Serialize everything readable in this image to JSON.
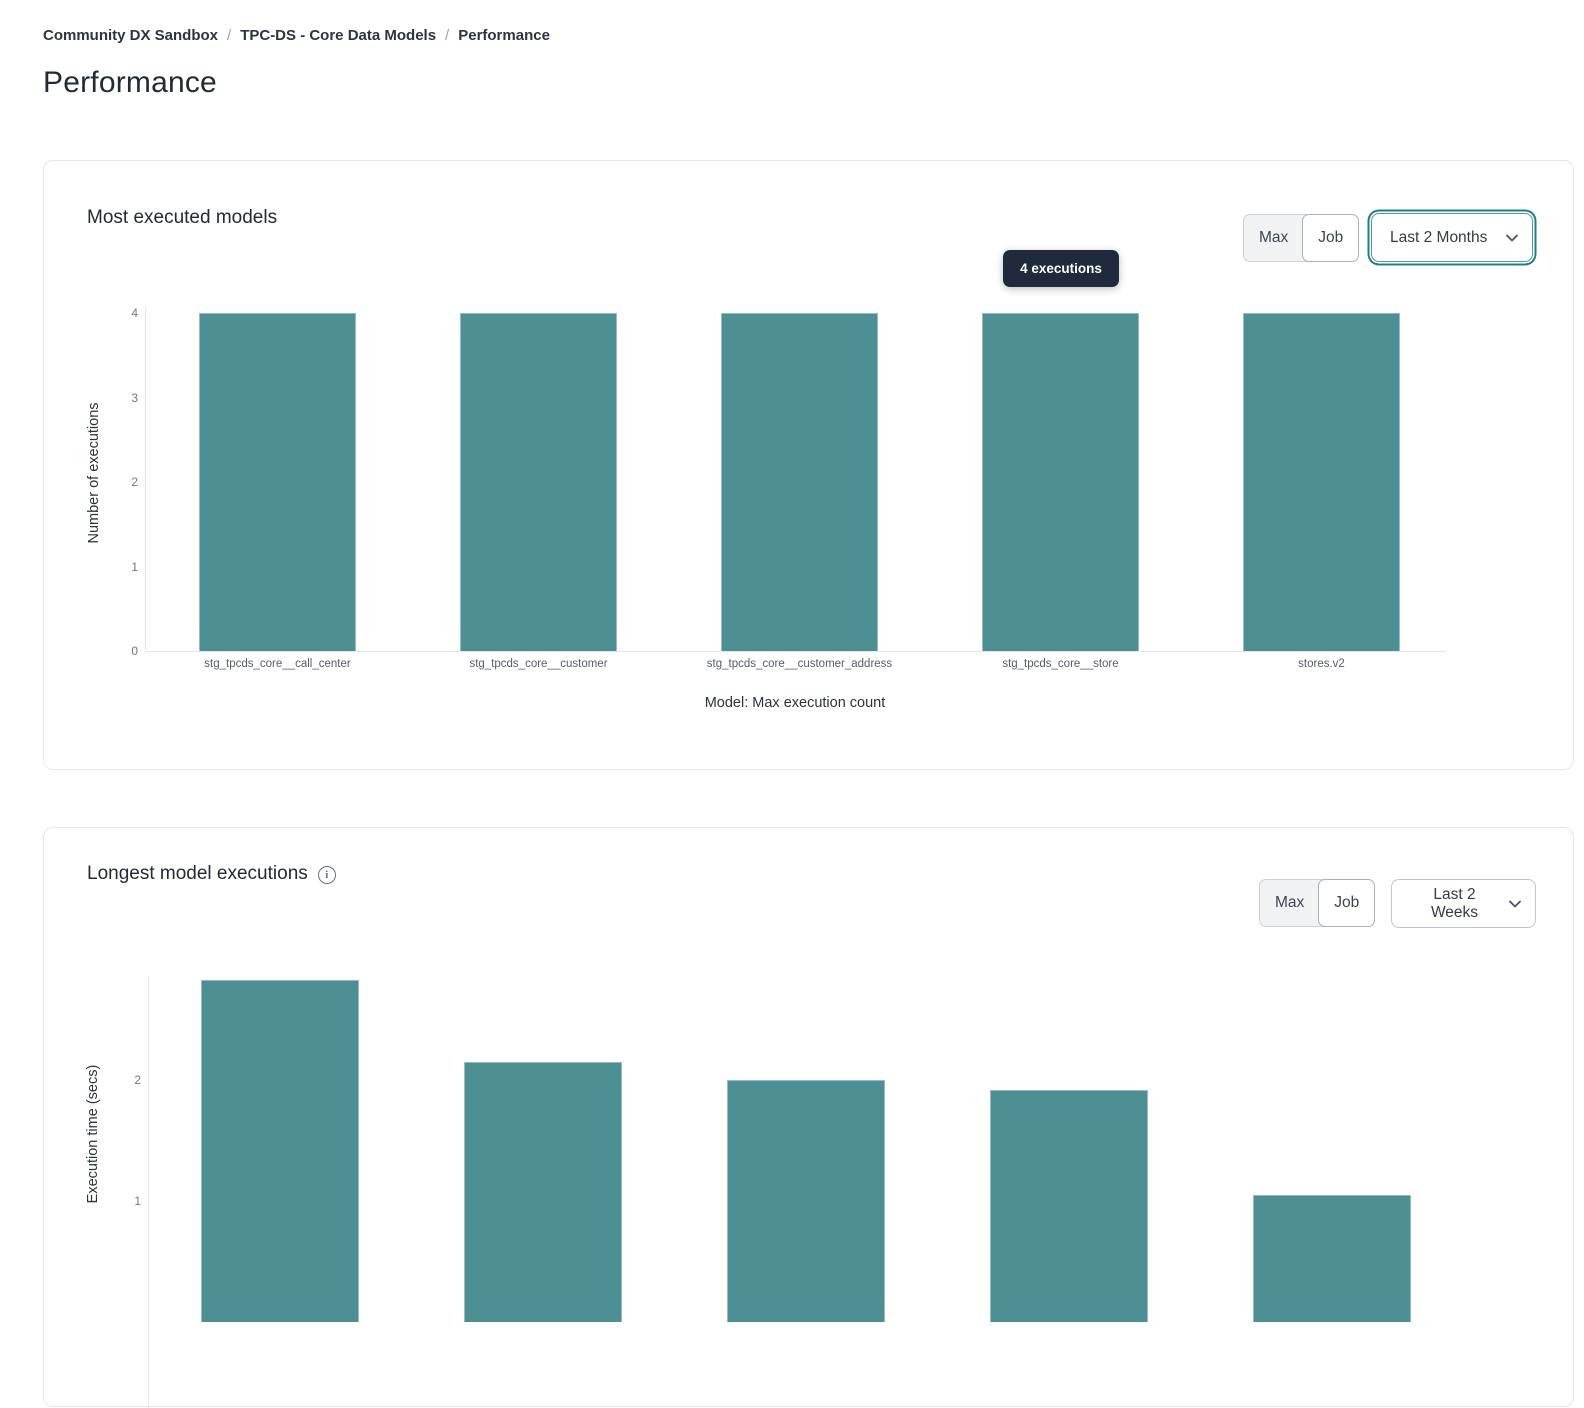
{
  "breadcrumb": {
    "separator": "/",
    "items": [
      "Community DX Sandbox",
      "TPC-DS - Core Data Models",
      "Performance"
    ]
  },
  "page": {
    "title": "Performance"
  },
  "colors": {
    "bar_fill": "#4e8f94",
    "bar_stroke": "#93bdc0",
    "tooltip_bg": "#1f2a3c",
    "tooltip_text": "#ffffff",
    "accent_ring": "#1d7f85",
    "axis_line": "#e3e6ea",
    "tick_text": "#6f7887"
  },
  "charts": [
    {
      "title": "Most executed models",
      "toggle": {
        "options": [
          "Max",
          "Job"
        ],
        "selected": "Job"
      },
      "dropdown": {
        "value": "Last 2 Months",
        "state": "focused"
      },
      "tooltip": {
        "text": "4 executions"
      },
      "chart_data": {
        "type": "bar",
        "categories": [
          "stg_tpcds_core__call_center",
          "stg_tpcds_core__customer",
          "stg_tpcds_core__customer_address",
          "stg_tpcds_core__store",
          "stores.v2"
        ],
        "values": [
          4,
          4,
          4,
          4,
          4
        ],
        "xlabel": "Model: Max execution count",
        "ylabel": "Number of executions",
        "ylim": [
          0,
          4
        ],
        "yticks": [
          0,
          1,
          2,
          3,
          4
        ],
        "grid": false,
        "legend": false
      }
    },
    {
      "title": "Longest model executions",
      "toggle": {
        "options": [
          "Max",
          "Job"
        ],
        "selected": "Job"
      },
      "dropdown": {
        "value": "Last 2 Weeks",
        "state": "default"
      },
      "chart_data": {
        "type": "bar",
        "categories": [
          "",
          "",
          "",
          "",
          ""
        ],
        "values": [
          2.83,
          2.15,
          2.0,
          1.92,
          1.05
        ],
        "xlabel": "",
        "ylabel": "Execution time (secs)",
        "ylim": [
          0,
          2.86
        ],
        "yticks": [
          1,
          2
        ],
        "grid": false,
        "legend": false
      }
    }
  ]
}
